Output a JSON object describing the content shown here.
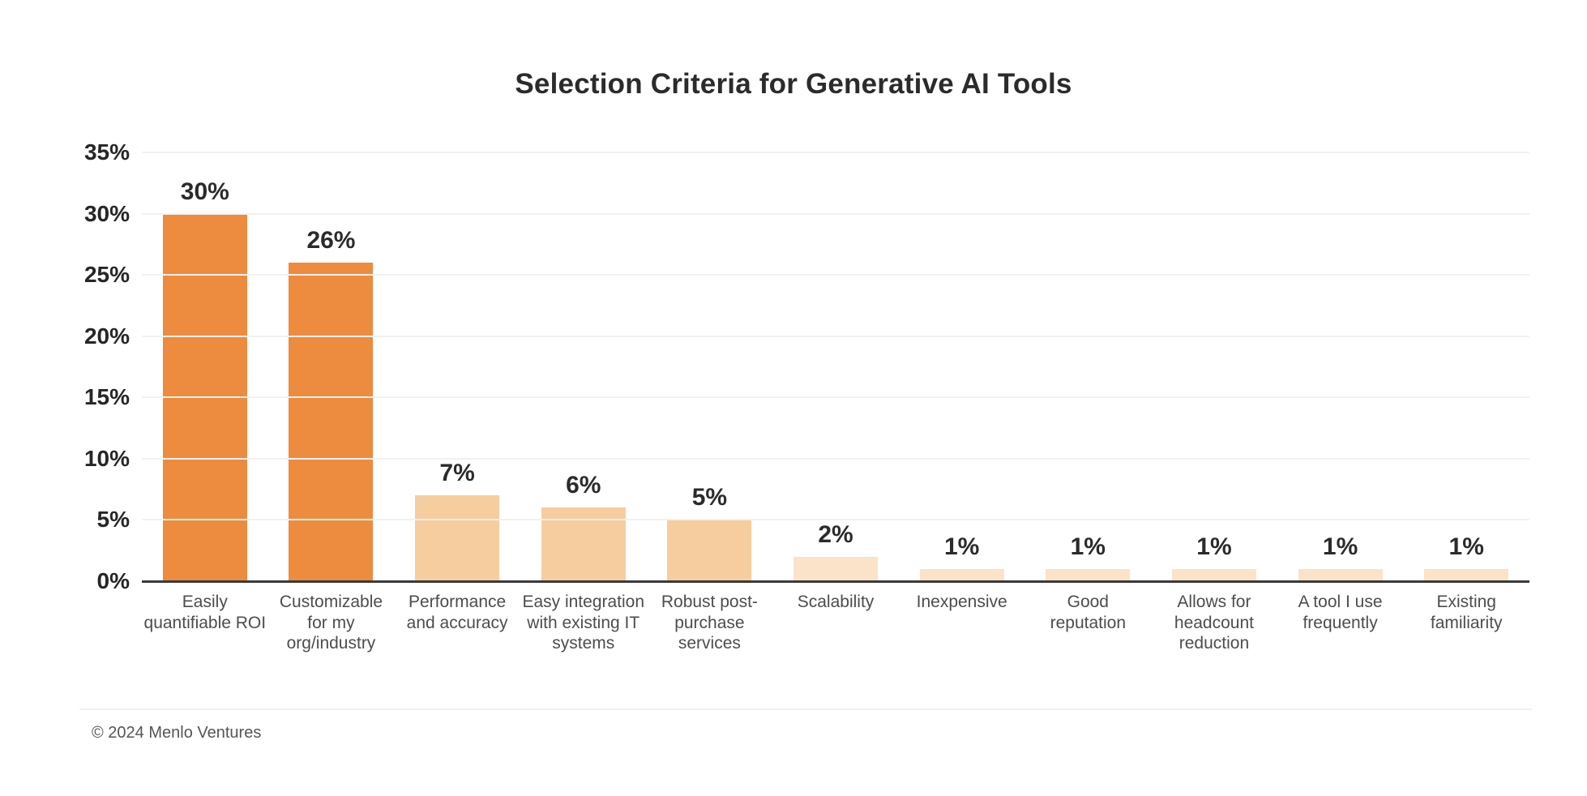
{
  "chart_data": {
    "type": "bar",
    "title": "Selection Criteria for Generative AI Tools",
    "categories": [
      "Easily\nquantifiable ROI",
      "Customizable\nfor my\norg/industry",
      "Performance\nand accuracy",
      "Easy integration\nwith existing IT\nsystems",
      "Robust post-\npurchase\nservices",
      "Scalability",
      "Inexpensive",
      "Good\nreputation",
      "Allows for\nheadcount\nreduction",
      "A tool I use\nfrequently",
      "Existing\nfamiliarity"
    ],
    "values": [
      30,
      26,
      7,
      6,
      5,
      2,
      1,
      1,
      1,
      1,
      1
    ],
    "value_labels": [
      "30%",
      "26%",
      "7%",
      "6%",
      "5%",
      "2%",
      "1%",
      "1%",
      "1%",
      "1%",
      "1%"
    ],
    "bar_colors": [
      "#ED8B3E",
      "#ED8B3E",
      "#F6CD9E",
      "#F6CD9E",
      "#F6CD9E",
      "#FAE3C8",
      "#FAE3C8",
      "#FAE3C8",
      "#FAE3C8",
      "#FAE3C8",
      "#FAE3C8"
    ],
    "y_ticks": [
      "35%",
      "30%",
      "25%",
      "20%",
      "15%",
      "10%",
      "5%",
      "0%"
    ],
    "ylim": [
      0,
      35
    ],
    "xlabel": "",
    "ylabel": "",
    "grid": "horizontal",
    "legend": "none"
  },
  "colors": {
    "bar_strong": "#ED8B3E",
    "bar_medium": "#F6CD9E",
    "bar_light": "#FAE3C8",
    "gridline": "#F1F1F1",
    "axis_line": "#3A3A3A",
    "title_text": "#2B2B2B",
    "tick_text": "#262626",
    "category_text": "#4D4D4D",
    "footer_text": "#555555"
  },
  "footer": {
    "text": "© 2024 Menlo Ventures"
  }
}
